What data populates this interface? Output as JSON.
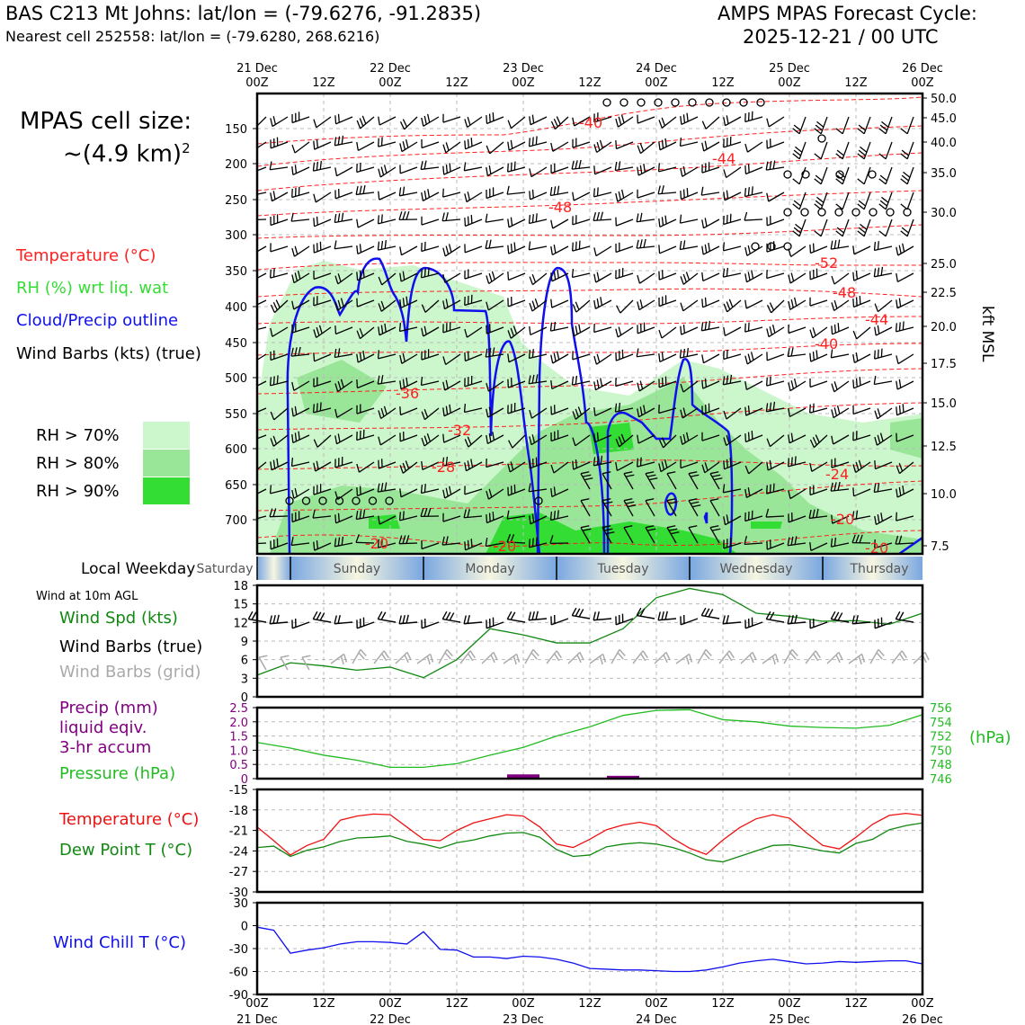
{
  "header": {
    "station_title": "BAS C213 Mt Johns: lat/lon = (-79.6276, -91.2835)",
    "nearest_cell": "Nearest cell 252558: lat/lon = (-79.6280, 268.6216)",
    "forecast_line1": "AMPS MPAS Forecast Cycle:",
    "forecast_line2": "2025-12-21 / 00 UTC"
  },
  "cell_size": {
    "line1": "MPAS cell size:",
    "line2": "~(4.9 km)",
    "exponent": "2"
  },
  "legend": {
    "temperature": "Temperature (°C)",
    "rh": "RH (%) wrt liq. wat",
    "cloud": "Cloud/Precip outline",
    "wind": "Wind Barbs (kts) (true)",
    "rh70": "RH > 70%",
    "rh80": "RH > 80%",
    "rh90": "RH > 90%",
    "colors": {
      "temperature": "#ff2020",
      "rh_text": "#33dd33",
      "cloud": "#1010ee",
      "rh70": "#ccf7cc",
      "rh80": "#99e699",
      "rh90": "#33dd33"
    }
  },
  "time_axis": {
    "top_labels": [
      {
        "l1": "21 Dec",
        "l2": "00Z"
      },
      {
        "l1": "",
        "l2": "12Z"
      },
      {
        "l1": "22 Dec",
        "l2": "00Z"
      },
      {
        "l1": "",
        "l2": "12Z"
      },
      {
        "l1": "23 Dec",
        "l2": "00Z"
      },
      {
        "l1": "",
        "l2": "12Z"
      },
      {
        "l1": "24 Dec",
        "l2": "00Z"
      },
      {
        "l1": "",
        "l2": "12Z"
      },
      {
        "l1": "25 Dec",
        "l2": "00Z"
      },
      {
        "l1": "",
        "l2": "12Z"
      },
      {
        "l1": "26 Dec",
        "l2": "00Z"
      }
    ],
    "bottom_labels": [
      {
        "l1": "00Z",
        "l2": "21 Dec"
      },
      {
        "l1": "12Z",
        "l2": ""
      },
      {
        "l1": "00Z",
        "l2": "22 Dec"
      },
      {
        "l1": "12Z",
        "l2": ""
      },
      {
        "l1": "00Z",
        "l2": "23 Dec"
      },
      {
        "l1": "12Z",
        "l2": ""
      },
      {
        "l1": "00Z",
        "l2": "24 Dec"
      },
      {
        "l1": "12Z",
        "l2": ""
      },
      {
        "l1": "00Z",
        "l2": "25 Dec"
      },
      {
        "l1": "12Z",
        "l2": ""
      },
      {
        "l1": "00Z",
        "l2": "26 Dec"
      }
    ]
  },
  "weekday_bar": {
    "label": "Local Weekday",
    "days": [
      "Saturday",
      "Sunday",
      "Monday",
      "Tuesday",
      "Wednesday",
      "Thursday"
    ]
  },
  "panel_labels": {
    "wind_at": "Wind at 10m AGL",
    "wind_spd": "Wind Spd (kts)",
    "wind_barbs_true": "Wind Barbs (true)",
    "wind_barbs_grid": "Wind Barbs (grid)",
    "precip1": "Precip (mm)",
    "precip2": "liquid eqiv.",
    "precip3": "3-hr accum",
    "pressure": "Pressure (hPa)",
    "hpa_unit": "(hPa)",
    "temp": "Temperature (°C)",
    "dewpoint": "Dew Point T (°C)",
    "windchill": "Wind Chill T (°C)",
    "kft_msl": "kft MSL"
  },
  "chart_data": [
    {
      "type": "heatmap",
      "title": "",
      "ylabel_left": "",
      "ylabel_right": "kft MSL",
      "pressure_ticks": [
        "150",
        "200",
        "250",
        "300",
        "350",
        "400",
        "450",
        "500",
        "550",
        "600",
        "650",
        "700"
      ],
      "height_ticks": [
        "50.0",
        "45.0",
        "40.0",
        "35.0",
        "30.0",
        "25.0",
        "22.5",
        "20.0",
        "17.5",
        "15.0",
        "12.5",
        "10.0",
        "7.5"
      ],
      "temperature_contour_labels": [
        "-40",
        "-44",
        "-48",
        "-52",
        "-48",
        "-44",
        "-40",
        "-36",
        "-32",
        "-28",
        "-24",
        "-20",
        "-20",
        "-20",
        "-20"
      ]
    },
    {
      "type": "line",
      "title": "Wind Spd (kts)",
      "ylim": [
        0,
        18
      ],
      "yticks": [
        "0",
        "3",
        "6",
        "9",
        "12",
        "15",
        "18"
      ],
      "x_hours": [
        0,
        6,
        12,
        18,
        24,
        30,
        36,
        42,
        48,
        54,
        60,
        66,
        72,
        78,
        84,
        90,
        96,
        102,
        108,
        114,
        120
      ],
      "values": [
        3.5,
        5.5,
        5,
        4.3,
        4.8,
        3.1,
        6,
        11,
        10,
        8.7,
        8.7,
        11,
        16,
        17.5,
        16.5,
        13.5,
        13,
        12.2,
        12.3,
        11.7,
        13.5
      ]
    },
    {
      "type": "line",
      "title": "Pressure (hPa)",
      "ylim_precip": [
        0,
        2.5
      ],
      "yticks_precip": [
        "0",
        "0.5",
        "1.0",
        "1.5",
        "2.0",
        "2.5"
      ],
      "ylim_pressure": [
        746,
        756
      ],
      "yticks_pressure": [
        "746",
        "748",
        "750",
        "752",
        "754",
        "756"
      ],
      "x_hours": [
        0,
        6,
        12,
        18,
        24,
        30,
        36,
        42,
        48,
        54,
        60,
        66,
        72,
        78,
        84,
        90,
        96,
        102,
        108,
        114,
        120
      ],
      "pressure": [
        751.1,
        750.3,
        749.3,
        748.6,
        747.6,
        747.6,
        748.1,
        749.3,
        750.4,
        752,
        753.3,
        754.9,
        755.6,
        755.7,
        754.3,
        754,
        753.4,
        753.2,
        753.1,
        753.5,
        755
      ],
      "precip": [
        0,
        0,
        0,
        0,
        0,
        0,
        0,
        0,
        0.15,
        0,
        0,
        0.1,
        0,
        0,
        0,
        0,
        0,
        0,
        0,
        0,
        0
      ]
    },
    {
      "type": "line",
      "title": "Temperature (°C)",
      "ylim": [
        -30,
        -15
      ],
      "yticks": [
        "-30",
        "-27",
        "-24",
        "-21",
        "-18",
        "-15"
      ],
      "x_hours": [
        0,
        3,
        6,
        9,
        12,
        15,
        18,
        21,
        24,
        27,
        30,
        33,
        36,
        39,
        42,
        45,
        48,
        51,
        54,
        57,
        60,
        63,
        66,
        69,
        72,
        75,
        78,
        81,
        84,
        87,
        90,
        93,
        96,
        99,
        102,
        105,
        108,
        111,
        114,
        117,
        120
      ],
      "series": [
        {
          "name": "Temperature (°C)",
          "color": "#ee1111",
          "values": [
            -20.5,
            -22.5,
            -24.6,
            -23.2,
            -22.3,
            -19.5,
            -18.9,
            -18.6,
            -18.7,
            -20.5,
            -22.3,
            -22.5,
            -21,
            -19.9,
            -19.3,
            -18.7,
            -18.9,
            -20.5,
            -23,
            -23.5,
            -22.3,
            -20.9,
            -20.2,
            -19.8,
            -20.3,
            -22.2,
            -23.6,
            -24.5,
            -22.4,
            -20.6,
            -19.3,
            -18.7,
            -19.2,
            -21.3,
            -23.2,
            -23.7,
            -22,
            -20.1,
            -18.8,
            -18.5,
            -18.8
          ]
        },
        {
          "name": "Dew Point T (°C)",
          "color": "#118811",
          "values": [
            -23.5,
            -23.3,
            -24.8,
            -23.9,
            -23.4,
            -22.6,
            -22.1,
            -22,
            -21.8,
            -22.6,
            -23,
            -23.6,
            -22.8,
            -22.4,
            -21.8,
            -21.4,
            -21.3,
            -22,
            -23.8,
            -24.8,
            -24.6,
            -23.4,
            -23,
            -22.8,
            -23,
            -23.5,
            -24.3,
            -25.3,
            -25.6,
            -24.8,
            -24,
            -23.2,
            -23.1,
            -23.5,
            -24,
            -24.3,
            -22.9,
            -22.3,
            -20.9,
            -20.3,
            -19.9
          ]
        }
      ]
    },
    {
      "type": "line",
      "title": "Wind Chill T (°C)",
      "ylim": [
        -90,
        30
      ],
      "yticks": [
        "-90",
        "-60",
        "-30",
        "0",
        "30"
      ],
      "x_hours": [
        0,
        3,
        6,
        9,
        12,
        15,
        18,
        21,
        24,
        27,
        30,
        33,
        36,
        39,
        42,
        45,
        48,
        51,
        54,
        57,
        60,
        63,
        66,
        69,
        72,
        75,
        78,
        81,
        84,
        87,
        90,
        93,
        96,
        99,
        102,
        105,
        108,
        111,
        114,
        117,
        120
      ],
      "values": [
        -2,
        -6,
        -36,
        -32,
        -29,
        -24,
        -21,
        -21,
        -22,
        -24,
        -8,
        -31,
        -32,
        -41,
        -41,
        -43,
        -40,
        -41,
        -44,
        -49,
        -56,
        -57,
        -58,
        -58,
        -59,
        -60,
        -60,
        -58,
        -54,
        -49,
        -46,
        -44,
        -47,
        -50,
        -49,
        -47,
        -48,
        -47,
        -46,
        -46,
        -50
      ]
    }
  ]
}
